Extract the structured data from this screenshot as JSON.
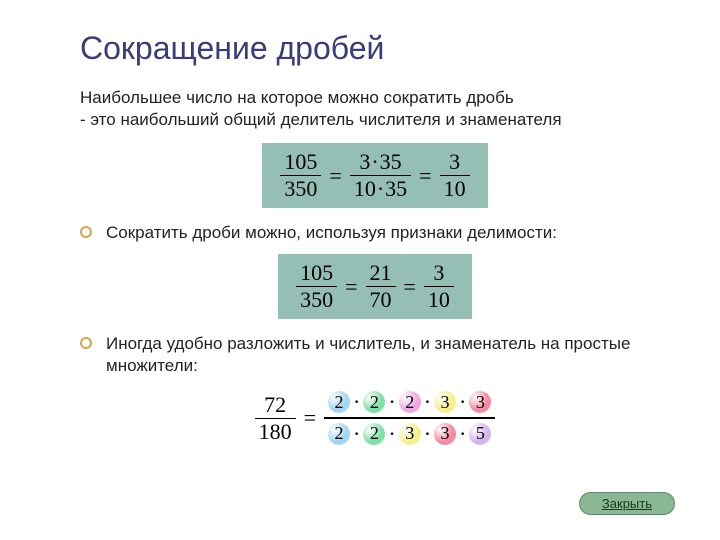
{
  "title": "Сокращение дробей",
  "subtitle": "Наибольшее число на которое можно сократить дробь\n - это наибольший общий делитель числителя и знаменателя",
  "bullet1": "Сократить дроби можно, используя признаки делимости:",
  "bullet2": "Иногда удобно разложить и числитель, и знаменатель на простые множители:",
  "formula1": {
    "f1_num": "105",
    "f1_den": "350",
    "f2_num_a": "3",
    "f2_num_b": "35",
    "f2_den_a": "10",
    "f2_den_b": "35",
    "f3_num": "3",
    "f3_den": "10"
  },
  "formula2": {
    "f1_num": "105",
    "f1_den": "350",
    "f2_num": "21",
    "f2_den": "70",
    "f3_num": "3",
    "f3_den": "10"
  },
  "formula3": {
    "left_num": "72",
    "left_den": "180",
    "num_factors": [
      {
        "v": "2",
        "c": "#9fd6f2"
      },
      {
        "v": "2",
        "c": "#7fe0a8"
      },
      {
        "v": "2",
        "c": "#f2a6e0"
      },
      {
        "v": "3",
        "c": "#f5f08a"
      },
      {
        "v": "3",
        "c": "#f58aa0"
      }
    ],
    "den_factors": [
      {
        "v": "2",
        "c": "#9fd6f2"
      },
      {
        "v": "2",
        "c": "#7fe0a8"
      },
      {
        "v": "3",
        "c": "#f5f08a"
      },
      {
        "v": "3",
        "c": "#f58aa0"
      },
      {
        "v": "5",
        "c": "#d4b5f0"
      }
    ]
  },
  "close_label": "Закрыть",
  "colors": {
    "title_color": "#3b3b7a",
    "formula_bg": "#95bfb4",
    "bullet_border": "#d4a84a",
    "button_bg": "#8ab894"
  }
}
